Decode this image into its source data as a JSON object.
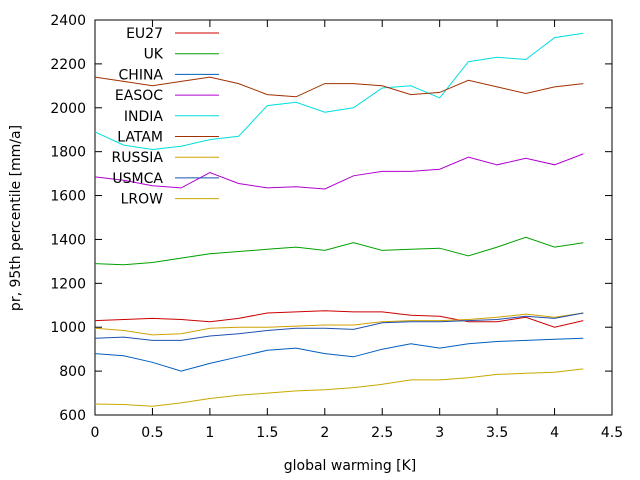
{
  "chart_data": {
    "type": "line",
    "title": "",
    "xlabel": "global warming [K]",
    "ylabel": "pr, 95th percentile [mm/a]",
    "xlim": [
      0,
      4.5
    ],
    "ylim": [
      600,
      2400
    ],
    "xticks": [
      0,
      0.5,
      1,
      1.5,
      2,
      2.5,
      3,
      3.5,
      4,
      4.5
    ],
    "xtick_labels": [
      "0",
      "0.5",
      "1",
      "1.5",
      "2",
      "2.5",
      "3",
      "3.5",
      "4",
      "4.5"
    ],
    "yticks": [
      600,
      800,
      1000,
      1200,
      1400,
      1600,
      1800,
      2000,
      2200,
      2400
    ],
    "ytick_labels": [
      "600",
      "800",
      "1000",
      "1200",
      "1400",
      "1600",
      "1800",
      "2000",
      "2200",
      "2400"
    ],
    "grid": false,
    "legend_position": "top-left",
    "x": [
      0,
      0.25,
      0.5,
      0.75,
      1,
      1.25,
      1.5,
      1.75,
      2,
      2.25,
      2.5,
      2.75,
      3,
      3.25,
      3.5,
      3.75,
      4,
      4.25
    ],
    "series": [
      {
        "name": "EU27",
        "color": "#cc0000",
        "values": [
          1030,
          1035,
          1040,
          1035,
          1025,
          1040,
          1065,
          1070,
          1075,
          1070,
          1070,
          1055,
          1050,
          1025,
          1025,
          1045,
          1000,
          1030
        ]
      },
      {
        "name": "UK",
        "color": "#00a000",
        "values": [
          1290,
          1285,
          1295,
          1315,
          1335,
          1345,
          1355,
          1365,
          1350,
          1385,
          1350,
          1355,
          1360,
          1325,
          1365,
          1410,
          1365,
          1385
        ]
      },
      {
        "name": "CHINA",
        "color": "#005ebf",
        "values": [
          880,
          870,
          840,
          800,
          835,
          865,
          895,
          905,
          880,
          865,
          900,
          925,
          905,
          925,
          935,
          940,
          945,
          950
        ]
      },
      {
        "name": "EASOC",
        "color": "#b000d0",
        "values": [
          1685,
          1670,
          1645,
          1635,
          1705,
          1655,
          1635,
          1640,
          1630,
          1690,
          1710,
          1710,
          1720,
          1775,
          1740,
          1770,
          1740,
          1790
        ]
      },
      {
        "name": "INDIA",
        "color": "#00dede",
        "values": [
          1890,
          1830,
          1810,
          1825,
          1855,
          1870,
          2010,
          2025,
          1980,
          2000,
          2090,
          2100,
          2045,
          2210,
          2230,
          2220,
          2320,
          2340
        ]
      },
      {
        "name": "LATAM",
        "color": "#a03000",
        "values": [
          2140,
          2120,
          2100,
          2120,
          2140,
          2110,
          2060,
          2050,
          2110,
          2110,
          2100,
          2060,
          2070,
          2125,
          2095,
          2065,
          2095,
          2110
        ]
      },
      {
        "name": "RUSSIA",
        "color": "#d0a000",
        "values": [
          995,
          985,
          965,
          970,
          995,
          1000,
          1000,
          1005,
          1010,
          1010,
          1025,
          1030,
          1030,
          1035,
          1045,
          1060,
          1045,
          1065
        ]
      },
      {
        "name": "USMCA",
        "color": "#1e50b0",
        "values": [
          950,
          955,
          940,
          940,
          960,
          970,
          985,
          995,
          995,
          990,
          1020,
          1025,
          1025,
          1030,
          1035,
          1050,
          1040,
          1065
        ]
      },
      {
        "name": "LROW",
        "color": "#c8a800",
        "values": [
          650,
          648,
          640,
          655,
          675,
          690,
          700,
          710,
          715,
          725,
          740,
          760,
          760,
          770,
          785,
          790,
          795,
          810
        ]
      }
    ]
  }
}
